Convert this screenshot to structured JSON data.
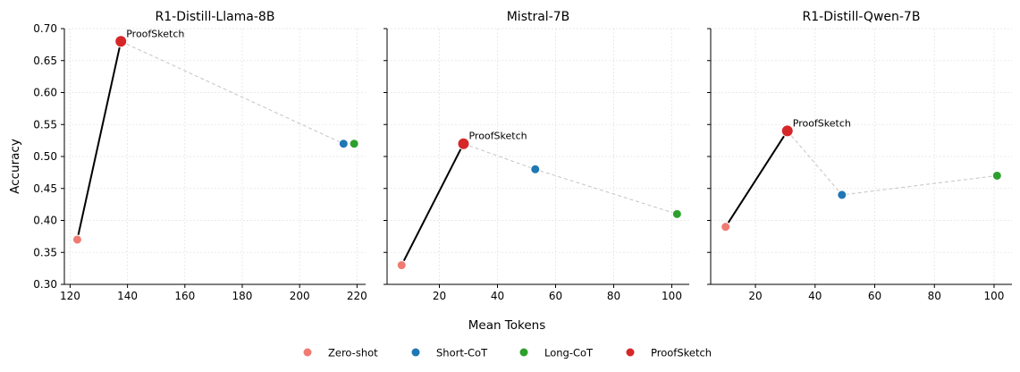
{
  "chart_data": {
    "type": "scatter",
    "ylabel": "Accuracy",
    "xlabel": "Mean Tokens",
    "ylim": [
      0.3,
      0.7
    ],
    "yticks": [
      "0.30",
      "0.35",
      "0.40",
      "0.45",
      "0.50",
      "0.55",
      "0.60",
      "0.65",
      "0.70"
    ],
    "legend": [
      {
        "name": "Zero-shot",
        "color": "#f07b72"
      },
      {
        "name": "Short-CoT",
        "color": "#1f77b4"
      },
      {
        "name": "Long-CoT",
        "color": "#2ca02c"
      },
      {
        "name": "ProofSketch",
        "color": "#d62728"
      }
    ],
    "annotation_label": "ProofSketch",
    "panels": [
      {
        "title": "R1-Distill-Llama-8B",
        "xlim": [
          118,
          223
        ],
        "xticks": [
          120,
          140,
          160,
          180,
          200,
          220
        ],
        "points": [
          {
            "method": "Zero-shot",
            "x": 122.5,
            "y": 0.37
          },
          {
            "method": "Short-CoT",
            "x": 215.3,
            "y": 0.52
          },
          {
            "method": "Long-CoT",
            "x": 219.0,
            "y": 0.52
          },
          {
            "method": "ProofSketch",
            "x": 137.7,
            "y": 0.68
          }
        ]
      },
      {
        "title": "Mistral-7B",
        "xlim": [
          2,
          106
        ],
        "xticks": [
          20,
          40,
          60,
          80,
          100
        ],
        "points": [
          {
            "method": "Zero-shot",
            "x": 7.0,
            "y": 0.33
          },
          {
            "method": "Short-CoT",
            "x": 53.0,
            "y": 0.48
          },
          {
            "method": "Long-CoT",
            "x": 101.8,
            "y": 0.41
          },
          {
            "method": "ProofSketch",
            "x": 28.3,
            "y": 0.52
          }
        ]
      },
      {
        "title": "R1-Distill-Qwen-7B",
        "xlim": [
          5,
          106
        ],
        "xticks": [
          20,
          40,
          60,
          80,
          100
        ],
        "points": [
          {
            "method": "Zero-shot",
            "x": 10.0,
            "y": 0.39
          },
          {
            "method": "Short-CoT",
            "x": 49.0,
            "y": 0.44
          },
          {
            "method": "Long-CoT",
            "x": 101.0,
            "y": 0.47
          },
          {
            "method": "ProofSketch",
            "x": 30.7,
            "y": 0.54
          }
        ]
      }
    ]
  }
}
